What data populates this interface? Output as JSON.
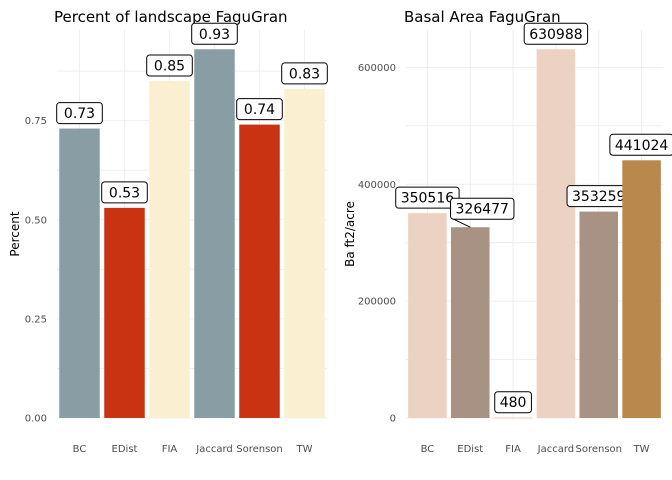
{
  "chart_data": [
    {
      "type": "bar",
      "title": "Percent of landscape  FaguGran",
      "xlabel": "",
      "ylabel": "Percent",
      "categories": [
        "BC",
        "EDist",
        "FIA",
        "Jaccard",
        "Sorenson",
        "TW"
      ],
      "values": [
        0.73,
        0.53,
        0.85,
        0.93,
        0.74,
        0.83
      ],
      "value_labels": [
        "0.73",
        "0.53",
        "0.85",
        "0.93",
        "0.74",
        "0.83"
      ],
      "colors": [
        "#899DA4",
        "#C93312",
        "#FAEFD1",
        "#899DA4",
        "#C93312",
        "#FAEFD1"
      ],
      "ylim": [
        0,
        0.9786
      ],
      "yticks": [
        0,
        0.25,
        0.5,
        0.75
      ],
      "ytick_labels": [
        "0.00",
        "0.25",
        "0.50",
        "0.75"
      ],
      "grid": true,
      "legend": "none"
    },
    {
      "type": "bar",
      "title": "Basal Area  FaguGran",
      "xlabel": "",
      "ylabel": "Ba ft2/acre",
      "categories": [
        "BC",
        "EDist",
        "FIA",
        "Jaccard",
        "Sorenson",
        "TW"
      ],
      "values": [
        350516,
        326477,
        480,
        630988,
        353259,
        441024
      ],
      "value_labels": [
        "350516",
        "326477",
        "480",
        "630988",
        "353259",
        "441024"
      ],
      "colors": [
        "#EBD2C2",
        "#A89283",
        "#E3B090",
        "#EBD2C2",
        "#A89283",
        "#B9884D"
      ],
      "ylim": [
        0,
        664000
      ],
      "yticks": [
        0,
        200000,
        400000,
        600000
      ],
      "ytick_labels": [
        "0",
        "200000",
        "400000",
        "600000"
      ],
      "grid": true,
      "legend": "none"
    }
  ]
}
